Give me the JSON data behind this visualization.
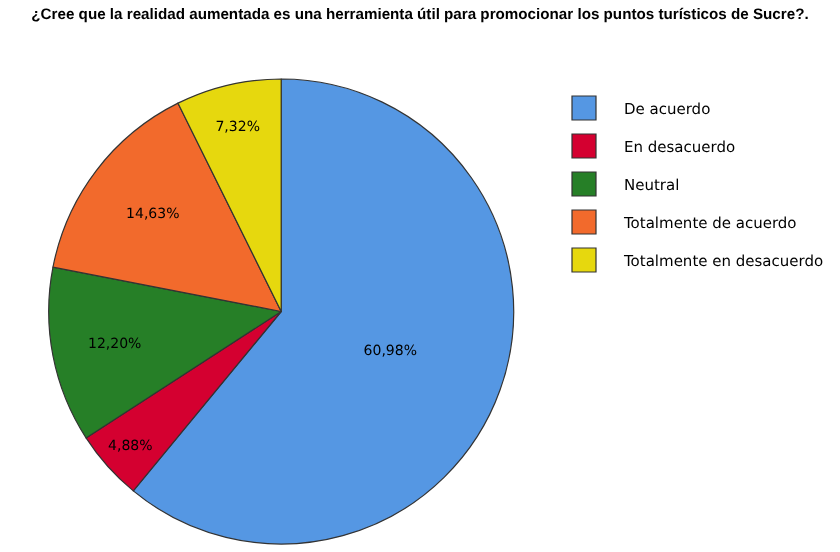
{
  "chart_data": {
    "type": "pie",
    "title": "¿Cree que la realidad aumentada es una herramienta útil para promocionar los puntos turísticos de Sucre?.",
    "categories": [
      "De acuerdo",
      "En desacuerdo",
      "Neutral",
      "Totalmente de acuerdo",
      "Totalmente en desacuerdo"
    ],
    "values": [
      60.98,
      4.88,
      12.2,
      14.63,
      7.32
    ],
    "value_labels": [
      "60,98%",
      "4,88%",
      "12,20%",
      "14,63%",
      "7,32%"
    ],
    "colors": [
      "#5597e3",
      "#d40030",
      "#267f27",
      "#f26a2c",
      "#e6d80e"
    ],
    "legend": "top right"
  }
}
